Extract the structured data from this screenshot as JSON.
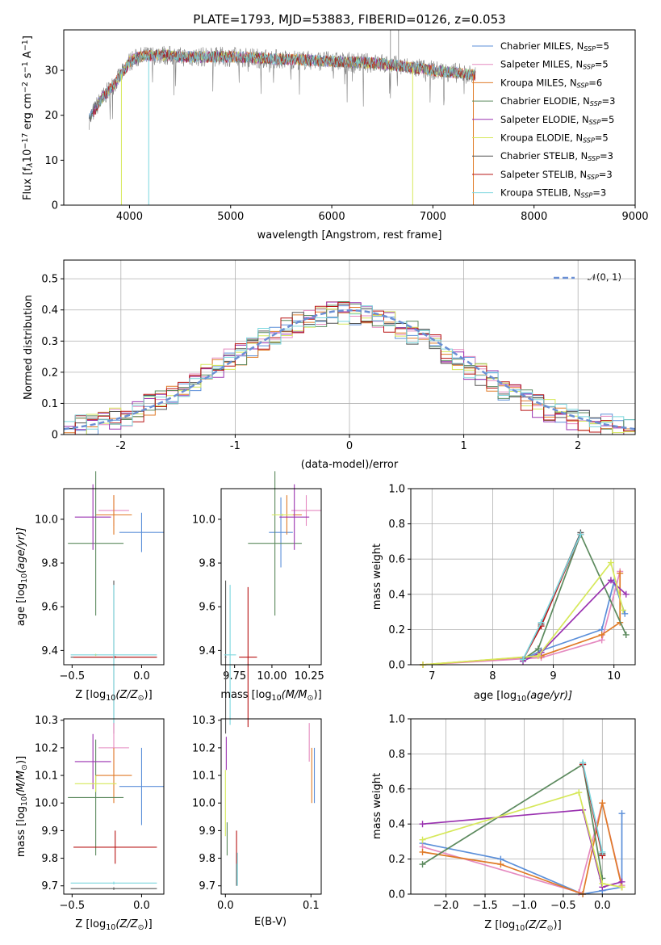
{
  "chart_data": [
    {
      "id": "spectrum",
      "type": "line",
      "title": "PLATE=1793, MJD=53883, FIBERID=0126, z=0.053",
      "xlabel": "wavelength [Angstrom, rest frame]",
      "ylabel_parts": [
        "Flux [f",
        "λ",
        "10",
        "−17",
        " erg cm",
        "−2",
        " s",
        "−1",
        " A",
        "−1",
        "]"
      ],
      "xlim": [
        3350,
        9000
      ],
      "ylim": [
        0,
        39
      ],
      "xticks": [
        4000,
        5000,
        6000,
        7000,
        8000,
        9000
      ],
      "yticks": [
        0,
        10,
        20,
        30
      ],
      "grid": false,
      "legend_position": "upper right",
      "wavelength_range": [
        3600,
        9000
      ],
      "continuum": {
        "x": [
          3600,
          3700,
          3850,
          3950,
          4000,
          4100,
          4300,
          4500,
          5000,
          5500,
          6000,
          6500,
          7000,
          7400
        ],
        "y": [
          19,
          23,
          27,
          30,
          32,
          33,
          33.5,
          33,
          33,
          32.5,
          32,
          31.5,
          30,
          29
        ]
      },
      "series": [
        {
          "label_name": "Chabrier MILES",
          "label_n": "5",
          "color": "#5B8FD9"
        },
        {
          "label_name": "Salpeter MILES",
          "label_n": "5",
          "color": "#E58AC0"
        },
        {
          "label_name": "Kroupa MILES",
          "label_n": "6",
          "color": "#E07B28"
        },
        {
          "label_name": "Chabrier ELODIE",
          "label_n": "3",
          "color": "#5C8A5E"
        },
        {
          "label_name": "Salpeter ELODIE",
          "label_n": "5",
          "color": "#9A32B0"
        },
        {
          "label_name": "Kroupa ELODIE",
          "label_n": "5",
          "color": "#D6E85A"
        },
        {
          "label_name": "Chabrier STELIB",
          "label_n": "3",
          "color": "#555555"
        },
        {
          "label_name": "Salpeter STELIB",
          "label_n": "3",
          "color": "#B81414"
        },
        {
          "label_name": "Kroupa STELIB",
          "label_n": "3",
          "color": "#7BD6DE"
        }
      ],
      "data_trace_color": "#808080"
    },
    {
      "id": "residuals",
      "type": "histogram",
      "xlabel": "(data-model)/error",
      "ylabel": "Normed distribution",
      "xlim": [
        -2.5,
        2.5
      ],
      "ylim": [
        0,
        0.56
      ],
      "xticks": [
        -2,
        -1,
        0,
        1,
        2
      ],
      "yticks": [
        0.0,
        0.1,
        0.2,
        0.3,
        0.4,
        0.5
      ],
      "grid": true,
      "legend": "𝒩(0, 1)",
      "bin_width": 0.1,
      "reference_curve": {
        "name": "N(0,1)",
        "mean": 0,
        "sigma": 1,
        "color": "#6A8FD4"
      },
      "series_colors": [
        "#5B8FD9",
        "#E58AC0",
        "#E07B28",
        "#5C8A5E",
        "#9A32B0",
        "#D6E85A",
        "#555555",
        "#B81414",
        "#7BD6DE"
      ]
    },
    {
      "id": "age_vs_Z",
      "type": "errorbar",
      "xlabel_parts": [
        "Z [log",
        "10",
        "(Z/Z",
        "⊙",
        ")]"
      ],
      "ylabel_parts": [
        "age  [log",
        "10",
        "(age/yr)]"
      ],
      "xlim": [
        -0.56,
        0.16
      ],
      "ylim": [
        9.335,
        10.14
      ],
      "xticks": [
        -0.5,
        0.0
      ],
      "xticklabels": [
        "−0.5",
        "0.0"
      ],
      "yticks": [
        9.4,
        9.6,
        9.8,
        10.0
      ],
      "yticklabels": [
        "9.4",
        "9.6",
        "9.8",
        "10.0"
      ],
      "points": [
        {
          "color": "#5B8FD9",
          "x": 0.0,
          "xerr": 0.16,
          "y": 9.94,
          "yerr": 0.09
        },
        {
          "color": "#E58AC0",
          "x": -0.2,
          "xerr": 0.11,
          "y": 10.04,
          "yerr": 0.07
        },
        {
          "color": "#E07B28",
          "x": -0.2,
          "xerr": 0.13,
          "y": 10.02,
          "yerr": 0.09
        },
        {
          "color": "#5C8A5E",
          "x": -0.33,
          "xerr": 0.2,
          "y": 9.89,
          "yerr": 0.33
        },
        {
          "color": "#9A32B0",
          "x": -0.35,
          "xerr": 0.13,
          "y": 10.01,
          "yerr": 0.15
        },
        {
          "color": "#D6E85A",
          "x": -0.33,
          "xerr": 0.01,
          "y": 9.38,
          "yerr": 0.005
        },
        {
          "color": "#555555",
          "x": -0.2,
          "xerr": 0.31,
          "y": 9.37,
          "yerr": 0.35
        },
        {
          "color": "#B81414",
          "x": -0.19,
          "xerr": 0.3,
          "y": 9.37,
          "yerr": 0.005
        },
        {
          "color": "#7BD6DE",
          "x": -0.2,
          "xerr": 0.31,
          "y": 9.38,
          "yerr": 0.32
        }
      ]
    },
    {
      "id": "age_vs_mass",
      "type": "errorbar",
      "xlabel_parts": [
        "mass [log",
        "10",
        "(M/M",
        "⊙",
        ")]"
      ],
      "xlim": [
        9.66,
        10.33
      ],
      "ylim": [
        9.335,
        10.14
      ],
      "xticks": [
        9.75,
        10.0,
        10.25
      ],
      "xticklabels": [
        "9.75",
        "10.00",
        "10.25"
      ],
      "yticks": [
        9.4,
        9.6,
        9.8,
        10.0
      ],
      "yticklabels": [
        "9.4",
        "9.6",
        "9.8",
        "10.0"
      ],
      "points": [
        {
          "color": "#5B8FD9",
          "x": 10.06,
          "xerr": 0.08,
          "y": 9.94,
          "yerr": 0.16
        },
        {
          "color": "#E58AC0",
          "x": 10.23,
          "xerr": 0.1,
          "y": 10.04,
          "yerr": 0.07
        },
        {
          "color": "#E07B28",
          "x": 10.1,
          "xerr": 0.1,
          "y": 10.02,
          "yerr": 0.09
        },
        {
          "color": "#5C8A5E",
          "x": 10.02,
          "xerr": 0.18,
          "y": 9.89,
          "yerr": 0.33
        },
        {
          "color": "#9A32B0",
          "x": 10.15,
          "xerr": 0.1,
          "y": 10.01,
          "yerr": 0.15
        },
        {
          "color": "#D6E85A",
          "x": 10.07,
          "xerr": 0.07,
          "y": 10.02,
          "yerr": 0.005
        },
        {
          "color": "#555555",
          "x": 9.69,
          "xerr": 0.005,
          "y": 9.37,
          "yerr": 0.35
        },
        {
          "color": "#B81414",
          "x": 9.84,
          "xerr": 0.06,
          "y": 9.37,
          "yerr": 0.32
        },
        {
          "color": "#7BD6DE",
          "x": 9.72,
          "xerr": 0.04,
          "y": 9.38,
          "yerr": 0.32
        }
      ]
    },
    {
      "id": "weight_vs_age",
      "type": "line",
      "xlabel_parts": [
        "age  [log",
        "10",
        "(age/yr)]"
      ],
      "ylabel": "mass weight",
      "xlim": [
        6.65,
        10.35
      ],
      "ylim": [
        0,
        1.0
      ],
      "xticks": [
        7,
        8,
        9,
        10
      ],
      "xticklabels": [
        "7",
        "8",
        "9",
        "10"
      ],
      "yticks": [
        0.0,
        0.2,
        0.4,
        0.6,
        0.8,
        1.0
      ],
      "yticklabels": [
        "0.0",
        "0.2",
        "0.4",
        "0.6",
        "0.8",
        "1.0"
      ],
      "grid": true,
      "series": [
        {
          "color": "#5B8FD9",
          "x": [
            8.5,
            8.8,
            9.8,
            10.0,
            10.18
          ],
          "y": [
            0.03,
            0.08,
            0.2,
            0.47,
            0.29
          ]
        },
        {
          "color": "#E58AC0",
          "x": [
            6.85,
            8.8,
            9.8,
            10.1
          ],
          "y": [
            0.0,
            0.04,
            0.14,
            0.53
          ]
        },
        {
          "color": "#E07B28",
          "x": [
            6.85,
            8.8,
            9.8,
            10.1,
            10.1
          ],
          "y": [
            0.0,
            0.05,
            0.17,
            0.24,
            0.52
          ]
        },
        {
          "color": "#5C8A5E",
          "x": [
            8.5,
            8.75,
            9.45,
            10.2
          ],
          "y": [
            0.03,
            0.09,
            0.74,
            0.17
          ]
        },
        {
          "color": "#9A32B0",
          "x": [
            8.5,
            8.8,
            9.95,
            10.2
          ],
          "y": [
            0.02,
            0.07,
            0.48,
            0.4
          ]
        },
        {
          "color": "#D6E85A",
          "x": [
            6.85,
            8.75,
            9.95,
            10.15
          ],
          "y": [
            0.0,
            0.05,
            0.58,
            0.31
          ]
        },
        {
          "color": "#555555",
          "x": [
            8.5,
            8.8,
            9.45
          ],
          "y": [
            0.03,
            0.23,
            0.75
          ]
        },
        {
          "color": "#B81414",
          "x": [
            8.5,
            8.8,
            9.45
          ],
          "y": [
            0.03,
            0.22,
            0.74
          ]
        },
        {
          "color": "#7BD6DE",
          "x": [
            8.5,
            8.8,
            9.45
          ],
          "y": [
            0.03,
            0.24,
            0.74
          ]
        }
      ]
    },
    {
      "id": "mass_vs_Z",
      "type": "errorbar",
      "xlabel_parts": [
        "Z [log",
        "10",
        "(Z/Z",
        "⊙",
        ")]"
      ],
      "ylabel_parts": [
        "mass [log",
        "10",
        "(M/M",
        "⊙",
        ")]"
      ],
      "xlim": [
        -0.56,
        0.16
      ],
      "ylim": [
        9.67,
        10.305
      ],
      "xticks": [
        -0.5,
        0.0
      ],
      "xticklabels": [
        "−0.5",
        "0.0"
      ],
      "yticks": [
        9.7,
        9.8,
        9.9,
        10.0,
        10.1,
        10.2,
        10.3
      ],
      "yticklabels": [
        "9.7",
        "9.8",
        "9.9",
        "10.0",
        "10.1",
        "10.2",
        "10.3"
      ],
      "points": [
        {
          "color": "#5B8FD9",
          "x": 0.0,
          "xerr": 0.16,
          "y": 10.06,
          "yerr": 0.14
        },
        {
          "color": "#E58AC0",
          "x": -0.2,
          "xerr": 0.11,
          "y": 10.2,
          "yerr": 0.09
        },
        {
          "color": "#E07B28",
          "x": -0.2,
          "xerr": 0.13,
          "y": 10.1,
          "yerr": 0.1
        },
        {
          "color": "#5C8A5E",
          "x": -0.33,
          "xerr": 0.2,
          "y": 10.02,
          "yerr": 0.21
        },
        {
          "color": "#9A32B0",
          "x": -0.35,
          "xerr": 0.13,
          "y": 10.15,
          "yerr": 0.1
        },
        {
          "color": "#D6E85A",
          "x": -0.33,
          "xerr": 0.15,
          "y": 10.07,
          "yerr": 0.03
        },
        {
          "color": "#555555",
          "x": -0.2,
          "xerr": 0.31,
          "y": 9.69,
          "yerr": 0.005
        },
        {
          "color": "#B81414",
          "x": -0.19,
          "xerr": 0.3,
          "y": 9.84,
          "yerr": 0.06
        },
        {
          "color": "#7BD6DE",
          "x": -0.2,
          "xerr": 0.31,
          "y": 9.71,
          "yerr": 0.005
        }
      ]
    },
    {
      "id": "mass_vs_EBV",
      "type": "errorbar",
      "xlabel": "E(B-V)",
      "xlim": [
        -0.005,
        0.112
      ],
      "ylim": [
        9.67,
        10.305
      ],
      "xticks": [
        0.0,
        0.1
      ],
      "xticklabels": [
        "0.0",
        "0.1"
      ],
      "yticks": [
        9.7,
        9.8,
        9.9,
        10.0,
        10.1,
        10.2,
        10.3
      ],
      "yticklabels": [
        "9.7",
        "9.8",
        "9.9",
        "10.0",
        "10.1",
        "10.2",
        "10.3"
      ],
      "points": [
        {
          "color": "#5B8FD9",
          "x": 0.104,
          "xerr": 0.0,
          "y": 10.1,
          "yerr": 0.1
        },
        {
          "color": "#E58AC0",
          "x": 0.098,
          "xerr": 0.0,
          "y": 10.22,
          "yerr": 0.07
        },
        {
          "color": "#E07B28",
          "x": 0.101,
          "xerr": 0.0,
          "y": 10.1,
          "yerr": 0.1
        },
        {
          "color": "#5C8A5E",
          "x": 0.002,
          "xerr": 0.0,
          "y": 9.87,
          "yerr": 0.06
        },
        {
          "color": "#9A32B0",
          "x": 0.001,
          "xerr": 0.0,
          "y": 10.18,
          "yerr": 0.06
        },
        {
          "color": "#D6E85A",
          "x": 0.0,
          "xerr": 0.0,
          "y": 10.0,
          "yerr": 0.12
        },
        {
          "color": "#555555",
          "x": 0.013,
          "xerr": 0.0,
          "y": 9.76,
          "yerr": 0.06
        },
        {
          "color": "#B81414",
          "x": 0.013,
          "xerr": 0.0,
          "y": 9.84,
          "yerr": 0.06
        },
        {
          "color": "#7BD6DE",
          "x": 0.014,
          "xerr": 0.0,
          "y": 9.76,
          "yerr": 0.06
        }
      ]
    },
    {
      "id": "weight_vs_Z",
      "type": "line",
      "xlabel_parts": [
        "Z [log",
        "10",
        "(Z/Z",
        "⊙",
        ")]"
      ],
      "ylabel": "mass weight",
      "xlim": [
        -2.45,
        0.42
      ],
      "ylim": [
        0,
        1.0
      ],
      "xticks": [
        -2.0,
        -1.5,
        -1.0,
        -0.5,
        0.0
      ],
      "xticklabels": [
        "−2.0",
        "−1.5",
        "−1.0",
        "−0.5",
        "0.0"
      ],
      "yticks": [
        0.0,
        0.2,
        0.4,
        0.6,
        0.8,
        1.0
      ],
      "yticklabels": [
        "0.0",
        "0.2",
        "0.4",
        "0.6",
        "0.8",
        "1.0"
      ],
      "grid": true,
      "series": [
        {
          "color": "#5B8FD9",
          "x": [
            -2.3,
            -1.3,
            -0.25,
            0.0,
            0.25,
            0.25
          ],
          "y": [
            0.29,
            0.2,
            0.0,
            0.02,
            0.04,
            0.46
          ]
        },
        {
          "color": "#E58AC0",
          "x": [
            -2.3,
            -0.3,
            0.0,
            0.25
          ],
          "y": [
            0.27,
            0.01,
            0.52,
            0.05
          ]
        },
        {
          "color": "#E07B28",
          "x": [
            -2.3,
            -1.3,
            -0.25,
            0.0,
            0.25
          ],
          "y": [
            0.24,
            0.17,
            0.0,
            0.52,
            0.04
          ]
        },
        {
          "color": "#5C8A5E",
          "x": [
            -2.3,
            -0.25,
            0.0
          ],
          "y": [
            0.17,
            0.74,
            0.09
          ]
        },
        {
          "color": "#9A32B0",
          "x": [
            -2.3,
            -0.25,
            0.0,
            0.25
          ],
          "y": [
            0.4,
            0.48,
            0.04,
            0.07
          ]
        },
        {
          "color": "#D6E85A",
          "x": [
            -2.3,
            -0.3,
            0.0,
            0.25
          ],
          "y": [
            0.31,
            0.58,
            0.06,
            0.04
          ]
        },
        {
          "color": "#555555",
          "x": [
            -0.25,
            0.0
          ],
          "y": [
            0.74,
            0.23
          ]
        },
        {
          "color": "#B81414",
          "x": [
            -0.25,
            0.0
          ],
          "y": [
            0.74,
            0.22
          ]
        },
        {
          "color": "#7BD6DE",
          "x": [
            -0.25,
            0.0
          ],
          "y": [
            0.75,
            0.24
          ]
        }
      ]
    }
  ]
}
